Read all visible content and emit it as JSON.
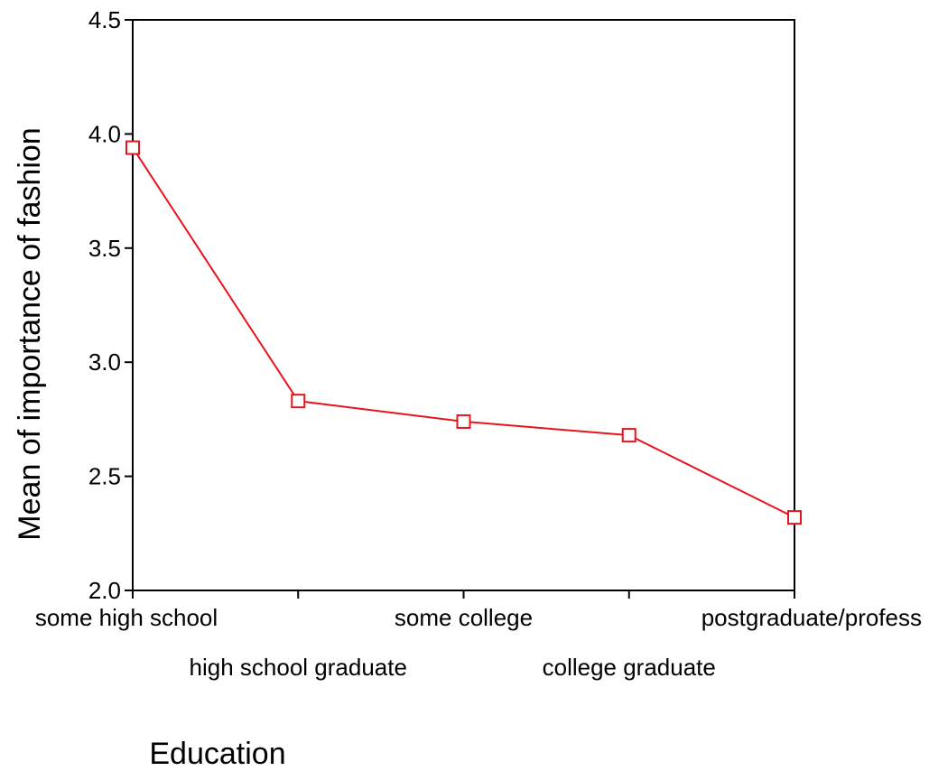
{
  "chart_data": {
    "type": "line",
    "title": "",
    "xlabel": "Education",
    "ylabel": "Mean of importance of fashion",
    "categories": [
      "some high school",
      "high school graduate",
      "some college",
      "college graduate",
      "postgraduate/profess"
    ],
    "series": [
      {
        "values": [
          3.94,
          2.83,
          2.74,
          2.68,
          2.32
        ]
      }
    ],
    "ylim": [
      2.0,
      4.5
    ],
    "yticks": [
      "2.0",
      "2.5",
      "3.0",
      "3.5",
      "4.0",
      "4.5"
    ],
    "grid": false,
    "marker": "square",
    "line_color": "#e8141b"
  }
}
